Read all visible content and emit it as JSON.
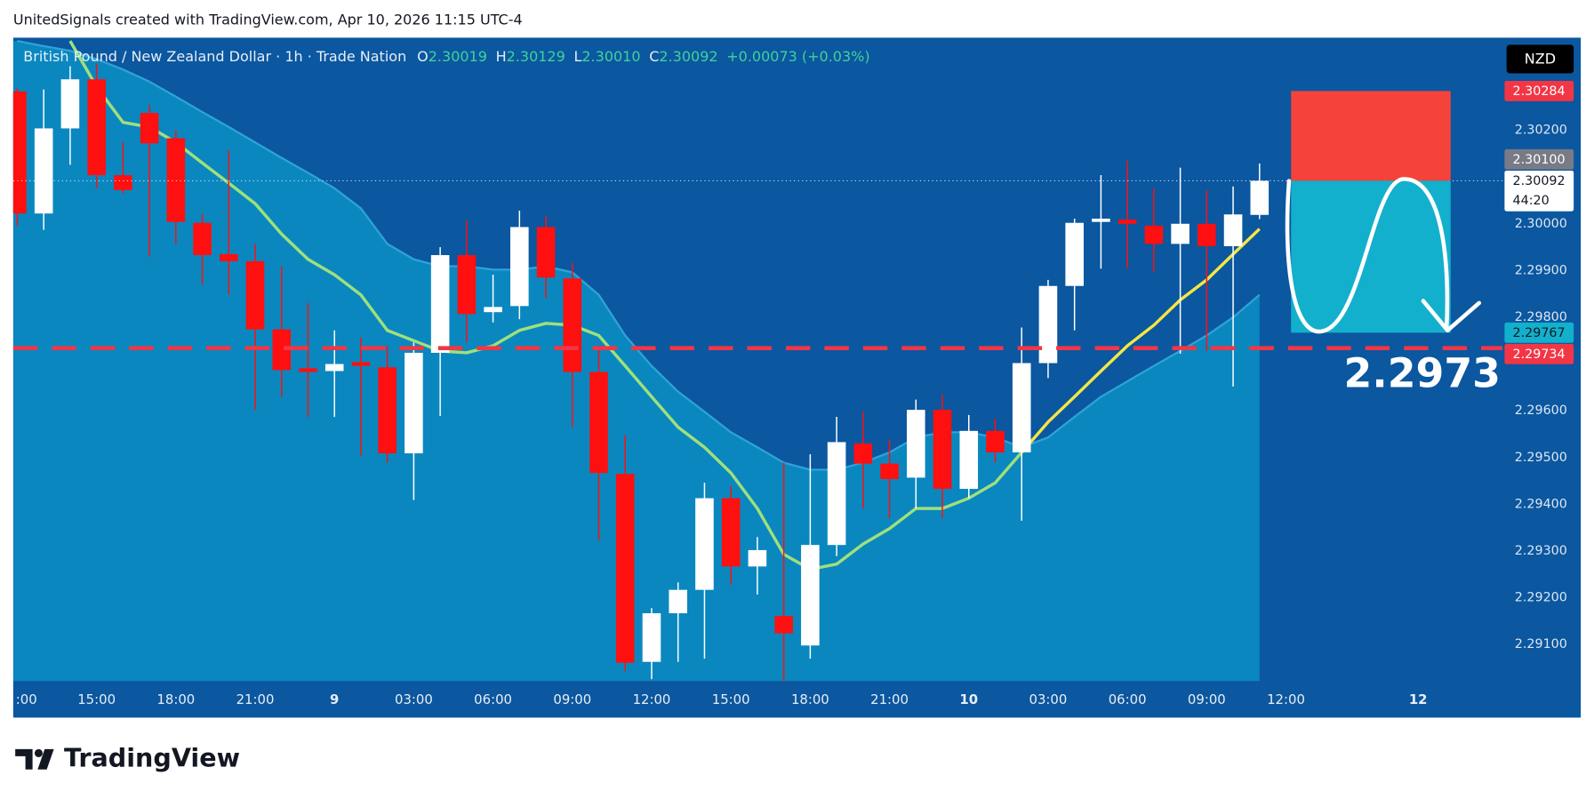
{
  "header": {
    "title": "UnitedSignals created with TradingView.com, Apr 10, 2026 11:15 UTC-4"
  },
  "footer": {
    "logo": "TradingView"
  },
  "chart_data": {
    "type": "candlestick",
    "title": "British Pound / New Zealand Dollar · 1h · Trade Nation",
    "ohlc": {
      "o_label": "O",
      "o": "2.30019",
      "h_label": "H",
      "h": "2.30129",
      "l_label": "L",
      "l": "2.30010",
      "c_label": "C",
      "c": "2.30092",
      "change": "+0.00073 (+0.03%)"
    },
    "currency": "NZD",
    "ylim": [
      2.29022,
      2.30398
    ],
    "yticks": [
      {
        "value": 2.291,
        "label": "2.29100"
      },
      {
        "value": 2.292,
        "label": "2.29200"
      },
      {
        "value": 2.293,
        "label": "2.29300"
      },
      {
        "value": 2.294,
        "label": "2.29400"
      },
      {
        "value": 2.295,
        "label": "2.29500"
      },
      {
        "value": 2.296,
        "label": "2.29600"
      },
      {
        "value": 2.298,
        "label": "2.29800"
      },
      {
        "value": 2.299,
        "label": "2.29900"
      },
      {
        "value": 2.3,
        "label": "2.30000"
      },
      {
        "value": 2.302,
        "label": "2.30200"
      }
    ],
    "xticks": [
      {
        "value": 0,
        "label": ":00"
      },
      {
        "value": 3,
        "label": "15:00"
      },
      {
        "value": 6,
        "label": "18:00"
      },
      {
        "value": 9,
        "label": "21:00"
      },
      {
        "value": 12,
        "label": "9"
      },
      {
        "value": 15,
        "label": "03:00"
      },
      {
        "value": 18,
        "label": "06:00"
      },
      {
        "value": 21,
        "label": "09:00"
      },
      {
        "value": 24,
        "label": "12:00"
      },
      {
        "value": 27,
        "label": "15:00"
      },
      {
        "value": 30,
        "label": "18:00"
      },
      {
        "value": 33,
        "label": "21:00"
      },
      {
        "value": 36,
        "label": "10"
      },
      {
        "value": 39,
        "label": "03:00"
      },
      {
        "value": 42,
        "label": "06:00"
      },
      {
        "value": 45,
        "label": "09:00"
      },
      {
        "value": 48,
        "label": "12:00"
      },
      {
        "value": 53,
        "label": "12"
      }
    ],
    "up_color": "#ffffff",
    "down_color": "#ff1010",
    "open": [
      2.30283,
      2.30022,
      2.30204,
      2.30309,
      2.30104,
      2.30237,
      2.30183,
      2.30002,
      2.29935,
      2.2992,
      2.29774,
      2.29691,
      2.29685,
      2.29704,
      2.29693,
      2.29509,
      2.29724,
      2.29933,
      2.29811,
      2.29824,
      2.29993,
      2.29883,
      2.29683,
      2.29465,
      2.29063,
      2.29167,
      2.29217,
      2.29413,
      2.29267,
      2.29161,
      2.29098,
      2.29313,
      2.2953,
      2.29487,
      2.29457,
      2.29602,
      2.29433,
      2.29557,
      2.29511,
      2.29702,
      2.29867,
      2.30004,
      2.30009,
      2.29996,
      2.29957,
      2.3,
      2.29952,
      2.30019
    ],
    "high": [
      2.3029,
      2.30287,
      2.30337,
      2.30343,
      2.30174,
      2.30254,
      2.302,
      2.30022,
      2.30157,
      2.29957,
      2.29909,
      2.2983,
      2.29772,
      2.29757,
      2.29739,
      2.29746,
      2.2995,
      2.30007,
      2.29891,
      2.30028,
      2.30017,
      2.29917,
      2.29739,
      2.29548,
      2.29178,
      2.29233,
      2.29446,
      2.29439,
      2.2933,
      2.29489,
      2.29507,
      2.29587,
      2.29598,
      2.29539,
      2.29624,
      2.29635,
      2.29591,
      2.29583,
      2.29778,
      2.2988,
      2.30011,
      2.30104,
      2.30135,
      2.30076,
      2.3012,
      2.30072,
      2.3008,
      2.30129
    ],
    "low": [
      2.29996,
      2.29987,
      2.30126,
      2.30076,
      2.30065,
      2.2993,
      2.29957,
      2.2987,
      2.29848,
      2.29602,
      2.2963,
      2.29587,
      2.29587,
      2.29504,
      2.29489,
      2.29409,
      2.29589,
      2.29746,
      2.29789,
      2.29796,
      2.29841,
      2.29565,
      2.29322,
      2.29043,
      2.29026,
      2.29063,
      2.2907,
      2.29228,
      2.29207,
      2.29022,
      2.2907,
      2.29289,
      2.29391,
      2.2937,
      2.29391,
      2.2937,
      2.29413,
      2.29489,
      2.29365,
      2.2967,
      2.29772,
      2.29904,
      2.29904,
      2.29896,
      2.29722,
      2.29728,
      2.29652,
      2.3001
    ],
    "close": [
      2.30022,
      2.30204,
      2.30309,
      2.30104,
      2.30072,
      2.30172,
      2.30004,
      2.29933,
      2.2992,
      2.29774,
      2.29687,
      2.29683,
      2.297,
      2.29696,
      2.29509,
      2.29724,
      2.29933,
      2.29807,
      2.29822,
      2.29993,
      2.29885,
      2.29683,
      2.29467,
      2.29061,
      2.29167,
      2.29217,
      2.29413,
      2.29267,
      2.29302,
      2.29124,
      2.29313,
      2.29533,
      2.29487,
      2.29454,
      2.29602,
      2.29433,
      2.29557,
      2.29511,
      2.29702,
      2.29867,
      2.30002,
      2.30011,
      2.3,
      2.29957,
      2.3,
      2.29952,
      2.3002,
      2.30092
    ],
    "band": {
      "color": "#0a87bf",
      "edge_color": "#2ea3d6",
      "values": [
        2.30391,
        2.3038,
        2.3037,
        2.30352,
        2.3033,
        2.30304,
        2.30272,
        2.30239,
        2.30207,
        2.30174,
        2.30141,
        2.30109,
        2.30076,
        2.30033,
        2.29957,
        2.29924,
        2.29909,
        2.29909,
        2.29902,
        2.29902,
        2.29909,
        2.29896,
        2.29848,
        2.29761,
        2.29696,
        2.29641,
        2.29598,
        2.29554,
        2.29522,
        2.29489,
        2.29474,
        2.29474,
        2.29489,
        2.29511,
        2.29543,
        2.29554,
        2.29554,
        2.29543,
        2.29522,
        2.29543,
        2.29587,
        2.2963,
        2.29663,
        2.29696,
        2.29728,
        2.29761,
        2.298,
        2.29848
      ]
    },
    "ma_green": {
      "color": "#9fe07c",
      "values": [
        null,
        null,
        2.30391,
        2.30293,
        2.30217,
        2.30207,
        2.30174,
        2.3013,
        2.30087,
        2.30043,
        2.29978,
        2.29924,
        2.29891,
        2.29848,
        2.29772,
        2.2975,
        2.29728,
        2.29724,
        2.29739,
        2.29772,
        2.29787,
        2.29783,
        2.29761,
        2.29696,
        2.2963,
        2.29565,
        2.29522,
        2.29467,
        2.29391,
        2.29293,
        2.29261,
        2.29272,
        2.29315,
        2.29348,
        2.29391,
        2.29391,
        2.29413,
        2.29446,
        2.29511,
        null,
        null,
        null,
        null,
        null,
        null,
        null,
        null,
        null
      ]
    },
    "ma_yellow": {
      "color": "#f5e642",
      "values": [
        null,
        null,
        null,
        null,
        null,
        null,
        null,
        null,
        null,
        null,
        null,
        null,
        null,
        null,
        null,
        null,
        null,
        null,
        null,
        null,
        null,
        null,
        null,
        null,
        null,
        null,
        null,
        null,
        null,
        null,
        null,
        null,
        null,
        null,
        null,
        null,
        null,
        null,
        2.29511,
        2.29576,
        2.2963,
        2.29685,
        2.29739,
        2.29783,
        2.29837,
        2.2988,
        2.29935,
        2.29989
      ]
    },
    "current_price": 2.30092,
    "horizontal_line": {
      "value": 2.29734,
      "color": "#f23645"
    },
    "position": {
      "entry": 2.30092,
      "stop": 2.30284,
      "target": 2.29767,
      "start": 48,
      "end": 54,
      "stop_color": "#f5423a",
      "target_color": "#12b0cc"
    },
    "price_labels": [
      {
        "value": 2.30092,
        "label": "2.30092",
        "color": "#ffffff",
        "text_color": "#131722",
        "countdown": "44:20"
      },
      {
        "value": 2.30284,
        "label": "2.30284",
        "color": "#f23645",
        "text_color": "#ffffff"
      },
      {
        "value": 2.301,
        "label": "2.30100",
        "color": "#787b86",
        "text_color": "#ffffff"
      },
      {
        "value": 2.29767,
        "label": "2.29767",
        "color": "#12b0cc",
        "text_color": "#131722"
      },
      {
        "value": 2.29734,
        "label": "2.29734",
        "color": "#f23645",
        "text_color": "#ffffff"
      }
    ],
    "annotation": "2.2973"
  }
}
